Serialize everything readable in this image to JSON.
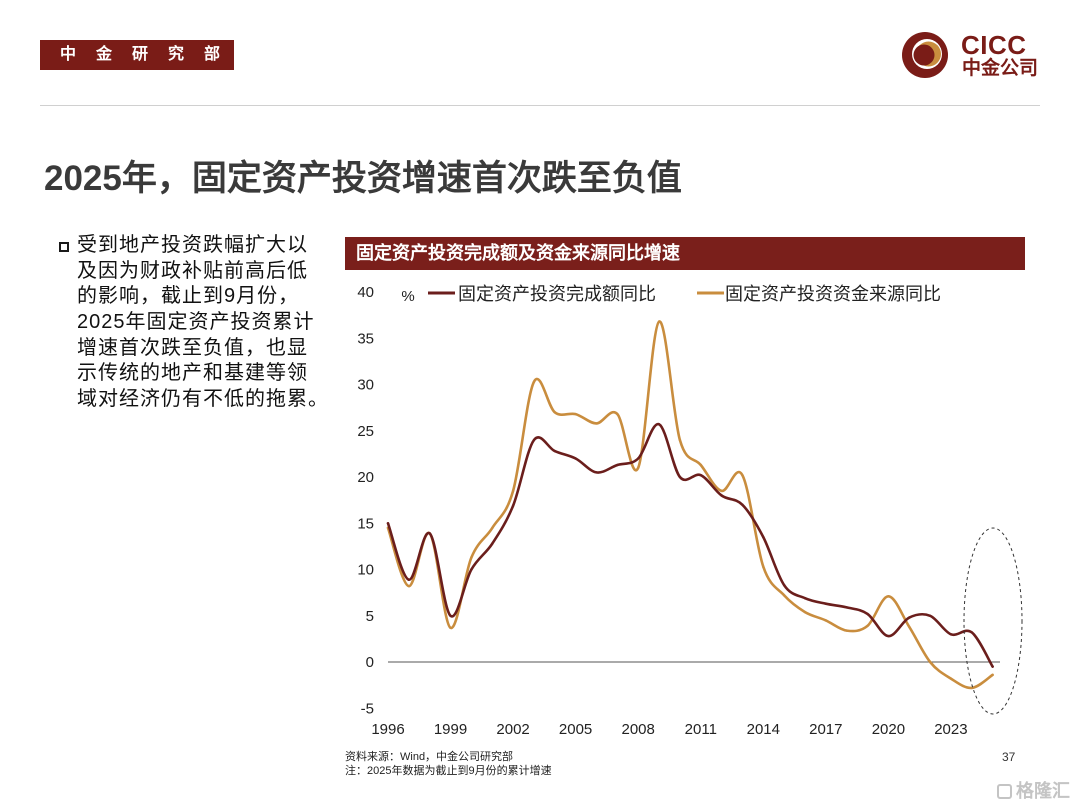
{
  "branding": {
    "department": "中金研究部",
    "company_en": "CICC",
    "company_cn": "中金公司",
    "colors": {
      "primary": "#7a1c17",
      "header_bar": "#7a1f1b",
      "gold": "#c98d3e",
      "rule": "#d0d0d0",
      "white": "#ffffff"
    }
  },
  "title": "2025年，固定资产投资增速首次跌至负值",
  "bullet": {
    "lines": [
      "受到地产投资跌幅扩大以",
      "及因为财政补贴前高后低",
      "的影响，截止到9月份，",
      "2025年固定资产投资累计",
      "增速首次跌至负值，也显",
      "示传统的地产和基建等领",
      "域对经济仍有不低的拖累。"
    ]
  },
  "chart_data": {
    "type": "line",
    "title": "固定资产投资完成额及资金来源同比增速",
    "unit": "%",
    "xlabel": "",
    "ylabel": "%",
    "xlim": [
      1996,
      2025
    ],
    "ylim": [
      -5,
      40
    ],
    "grid": false,
    "legend_position": "top",
    "x": [
      1996,
      1997,
      1998,
      1999,
      2000,
      2001,
      2002,
      2003,
      2004,
      2005,
      2006,
      2007,
      2008,
      2009,
      2010,
      2011,
      2012,
      2013,
      2014,
      2015,
      2016,
      2017,
      2018,
      2019,
      2020,
      2021,
      2022,
      2023,
      2024,
      2025
    ],
    "xticks": [
      1996,
      1999,
      2002,
      2005,
      2008,
      2011,
      2014,
      2017,
      2020,
      2023
    ],
    "yticks": [
      40,
      35,
      30,
      25,
      20,
      15,
      10,
      5,
      0,
      -5
    ],
    "series": [
      {
        "name": "固定资产投资完成额同比",
        "color": "#6b1e1c",
        "values": [
          15.0,
          8.9,
          13.9,
          5.0,
          10.0,
          12.8,
          16.9,
          24.0,
          22.8,
          22.0,
          20.5,
          21.3,
          22.0,
          25.7,
          20.0,
          20.2,
          18.0,
          17.0,
          13.5,
          8.3,
          6.9,
          6.3,
          5.9,
          5.2,
          2.8,
          4.8,
          5.0,
          3.0,
          3.2,
          -0.5
        ]
      },
      {
        "name": "固定资产投资资金来源同比",
        "color": "#c98d3e",
        "values": [
          14.5,
          8.2,
          13.9,
          3.7,
          11.3,
          14.5,
          18.5,
          30.3,
          27.0,
          26.8,
          25.8,
          26.8,
          21.0,
          36.8,
          24.0,
          21.3,
          18.5,
          20.2,
          10.3,
          7.2,
          5.4,
          4.5,
          3.4,
          3.9,
          7.1,
          3.8,
          0.0,
          -1.8,
          -2.8,
          -1.4
        ]
      }
    ]
  },
  "footer": {
    "source": "资料来源：Wind，中金公司研究部",
    "note": "注：2025年数据为截止到9月份的累计增速",
    "page": "37"
  },
  "watermark": {
    "text": "格隆汇"
  }
}
